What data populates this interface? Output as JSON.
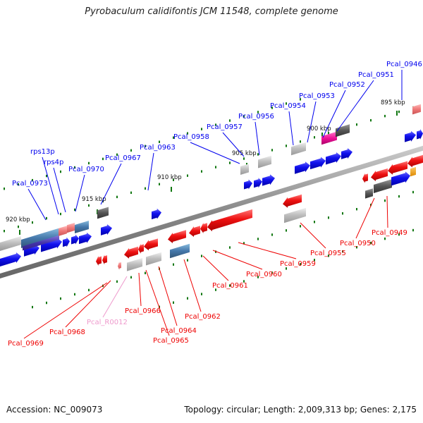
{
  "title": "Pyrobaculum calidifontis JCM 11548, complete genome",
  "footer": {
    "accession": "Accession: NC_009073",
    "topology": "Topology: circular; Length: 2,009,313 bp; Genes: 2,175"
  },
  "colors": {
    "forward": "#0000ee",
    "reverse": "#ee0000",
    "rna": "#ee99cc",
    "backbone": "#888888",
    "tick": "#117711",
    "scale_text": "#111111"
  },
  "scale_labels": [
    "895 kbp",
    "900 kbp",
    "905 kbp",
    "910 kbp",
    "915 kbp",
    "920 kbp"
  ],
  "genes_upper": [
    {
      "name": "Pcal_0946",
      "color": "#0000ee"
    },
    {
      "name": "Pcal_0951",
      "color": "#0000ee"
    },
    {
      "name": "Pcal_0952",
      "color": "#0000ee"
    },
    {
      "name": "Pcal_0953",
      "color": "#0000ee"
    },
    {
      "name": "Pcal_0954",
      "color": "#0000ee"
    },
    {
      "name": "Pcal_0956",
      "color": "#0000ee"
    },
    {
      "name": "Pcal_0957",
      "color": "#0000ee"
    },
    {
      "name": "Pcal_0958",
      "color": "#0000ee"
    },
    {
      "name": "Pcal_0963",
      "color": "#0000ee"
    },
    {
      "name": "Pcal_0967",
      "color": "#0000ee"
    },
    {
      "name": "Pcal_0970",
      "color": "#0000ee"
    },
    {
      "name": "rps13p",
      "color": "#0000ee"
    },
    {
      "name": "rps4p",
      "color": "#0000ee"
    },
    {
      "name": "Pcal_0973",
      "color": "#0000ee"
    }
  ],
  "genes_lower": [
    {
      "name": "Pcal_0949",
      "color": "#ee0000"
    },
    {
      "name": "Pcal_0950",
      "color": "#ee0000"
    },
    {
      "name": "Pcal_0955",
      "color": "#ee0000"
    },
    {
      "name": "Pcal_0959",
      "color": "#ee0000"
    },
    {
      "name": "Pcal_0960",
      "color": "#ee0000"
    },
    {
      "name": "Pcal_0961",
      "color": "#ee0000"
    },
    {
      "name": "Pcal_0962",
      "color": "#ee0000"
    },
    {
      "name": "Pcal_0966",
      "color": "#ee0000"
    },
    {
      "name": "Pcal_0964",
      "color": "#ee0000"
    },
    {
      "name": "Pcal_0965",
      "color": "#ee0000"
    },
    {
      "name": "Pcal_R0012",
      "color": "#ee99cc"
    },
    {
      "name": "Pcal_0968",
      "color": "#ee0000"
    },
    {
      "name": "Pcal_0969",
      "color": "#ee0000"
    }
  ]
}
